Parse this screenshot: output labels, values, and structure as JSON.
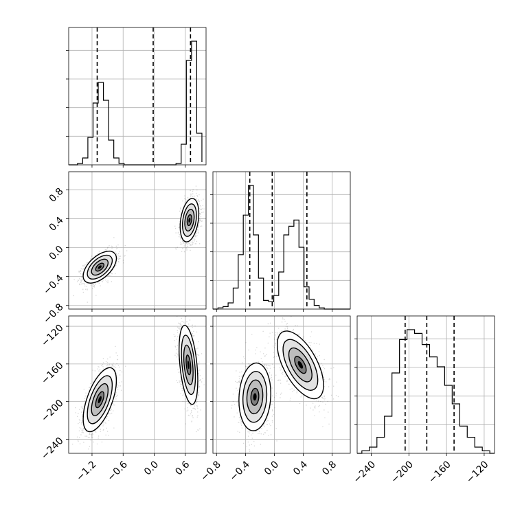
{
  "chart_data": {
    "type": "corner",
    "grid": true,
    "params": [
      {
        "ticks": [
          "−1.2",
          "−0.6",
          "0.0",
          "0.6"
        ],
        "tick_values": [
          -1.2,
          -0.6,
          0.0,
          0.6
        ],
        "range": [
          -1.65,
          1.0
        ]
      },
      {
        "ticks": [
          "−0.8",
          "−0.4",
          "0.0",
          "0.4",
          "0.8"
        ],
        "tick_values": [
          -0.8,
          -0.4,
          0.0,
          0.4,
          0.8
        ],
        "range": [
          -0.85,
          1.05
        ]
      },
      {
        "ticks": [
          "−240",
          "−200",
          "−160",
          "−120"
        ],
        "tick_values": [
          -240,
          -200,
          -160,
          -120
        ],
        "range": [
          -255,
          -109
        ]
      }
    ],
    "histograms": [
      {
        "quantiles": [
          -1.1,
          -0.02,
          0.7
        ],
        "bin_edges": [
          -1.48,
          -1.38,
          -1.28,
          -1.18,
          -1.08,
          -0.98,
          -0.88,
          -0.78,
          -0.68,
          -0.58,
          -0.48,
          -0.38,
          -0.28,
          -0.18,
          -0.08,
          0.02,
          0.12,
          0.22,
          0.32,
          0.42,
          0.52,
          0.62,
          0.72,
          0.82,
          0.92
        ],
        "counts": [
          0.01,
          0.05,
          0.2,
          0.45,
          0.6,
          0.47,
          0.18,
          0.05,
          0.01,
          0,
          0,
          0,
          0,
          0,
          0,
          0,
          0,
          0,
          0,
          0.01,
          0.15,
          0.76,
          0.9,
          0.23,
          0.02
        ]
      },
      {
        "quantiles": [
          -0.34,
          -0.03,
          0.45
        ],
        "bin_edges": [
          -0.78,
          -0.71,
          -0.64,
          -0.57,
          -0.5,
          -0.43,
          -0.36,
          -0.29,
          -0.22,
          -0.15,
          -0.08,
          -0.01,
          0.06,
          0.13,
          0.2,
          0.27,
          0.34,
          0.41,
          0.48,
          0.55,
          0.62,
          0.69,
          0.76,
          0.83
        ],
        "counts": [
          0.01,
          0.02,
          0.05,
          0.17,
          0.44,
          0.76,
          1.0,
          0.6,
          0.25,
          0.07,
          0.06,
          0.11,
          0.3,
          0.6,
          0.67,
          0.72,
          0.5,
          0.18,
          0.08,
          0.03,
          0.01,
          0,
          0
        ]
      },
      {
        "quantiles": [
          -204,
          -181,
          -152
        ],
        "bin_edges": [
          -250,
          -242,
          -234,
          -226,
          -218,
          -210,
          -202,
          -194,
          -186,
          -178,
          -170,
          -162,
          -154,
          -146,
          -138,
          -130,
          -122,
          -114
        ],
        "counts": [
          0.02,
          0.05,
          0.13,
          0.3,
          0.65,
          0.92,
          1.0,
          0.97,
          0.88,
          0.78,
          0.7,
          0.55,
          0.4,
          0.22,
          0.13,
          0.05,
          0.02
        ]
      }
    ],
    "scatter_pairs": [
      {
        "x_param": 0,
        "y_param": 1,
        "clusters": [
          {
            "center": [
              -1.05,
              -0.27
            ],
            "sd": [
              0.16,
              0.11
            ],
            "rho": 0.55,
            "n": 1300
          },
          {
            "center": [
              0.68,
              0.38
            ],
            "sd": [
              0.09,
              0.15
            ],
            "rho": 0.3,
            "n": 1300
          }
        ]
      },
      {
        "x_param": 0,
        "y_param": 2,
        "clusters": [
          {
            "center": [
              -1.05,
              -198
            ],
            "sd": [
              0.16,
              17
            ],
            "rho": 0.6,
            "n": 1300
          },
          {
            "center": [
              0.66,
              -161
            ],
            "sd": [
              0.09,
              21
            ],
            "rho": -0.4,
            "n": 1300
          }
        ]
      },
      {
        "x_param": 1,
        "y_param": 2,
        "clusters": [
          {
            "center": [
              -0.27,
              -195
            ],
            "sd": [
              0.11,
              18
            ],
            "rho": 0.1,
            "n": 1300
          },
          {
            "center": [
              0.36,
              -161
            ],
            "sd": [
              0.16,
              18
            ],
            "rho": -0.6,
            "n": 1300
          }
        ]
      }
    ],
    "contour_levels_sigma": [
      0.5,
      1.0,
      1.5,
      2.0
    ]
  }
}
